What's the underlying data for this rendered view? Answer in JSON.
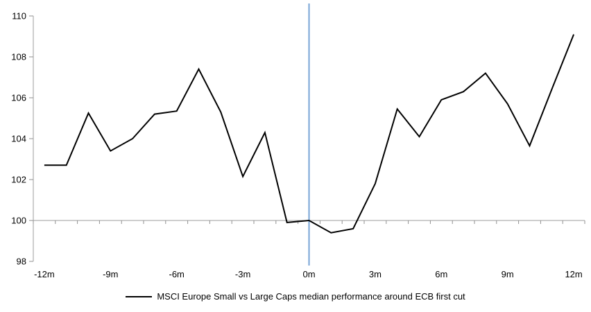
{
  "chart_data": {
    "type": "line",
    "title": "",
    "xlabel": "",
    "ylabel": "",
    "x": [
      -12,
      -11,
      -10,
      -9,
      -8,
      -7,
      -6,
      -5,
      -4,
      -3,
      -2,
      -1,
      0,
      1,
      2,
      3,
      4,
      5,
      6,
      7,
      8,
      9,
      10,
      11,
      12
    ],
    "series": [
      {
        "name": "MSCI Europe Small vs Large Caps median performance around ECB first cut",
        "color": "#000000",
        "values": [
          102.7,
          102.7,
          105.25,
          103.4,
          104.0,
          105.2,
          105.35,
          107.4,
          105.3,
          102.15,
          104.3,
          99.9,
          100.0,
          99.4,
          99.6,
          101.8,
          105.45,
          104.1,
          105.9,
          106.3,
          107.2,
          105.7,
          103.65,
          106.4,
          109.1
        ]
      }
    ],
    "xlim": [
      -12.5,
      12.5
    ],
    "ylim": [
      98,
      110
    ],
    "y_ticks": [
      98,
      100,
      102,
      104,
      106,
      108,
      110
    ],
    "x_tick_labels": [
      "-12m",
      "-9m",
      "-6m",
      "-3m",
      "0m",
      "3m",
      "6m",
      "9m",
      "12m"
    ],
    "x_tick_label_months": [
      -12,
      -9,
      -6,
      -3,
      0,
      3,
      6,
      9,
      12
    ],
    "x_minor_tick_step": 1,
    "baseline_value": 100,
    "event_line": {
      "month": 0,
      "color": "#74A3D6"
    },
    "axis_color": "#9E9E9E",
    "tick_color": "#8F8F8F",
    "label_color": "#000000",
    "grid": "off",
    "legend_position": "bottom-center"
  }
}
